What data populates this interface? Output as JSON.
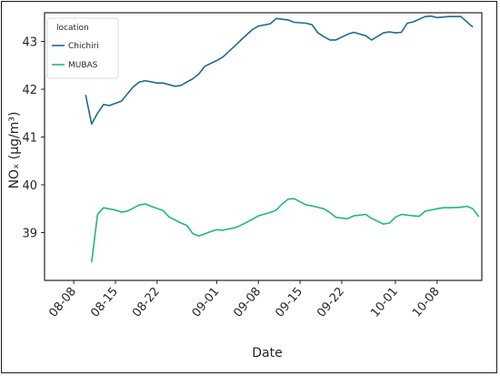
{
  "chart_data": {
    "type": "line",
    "xlabel": "Date",
    "ylabel": "NOₓ (µg/m³)",
    "x_tick_labels": [
      "08-08",
      "08-15",
      "08-22",
      "09-01",
      "09-08",
      "09-15",
      "09-22",
      "10-01",
      "10-08"
    ],
    "x_tick_dates": [
      "2000-08-08",
      "2000-08-15",
      "2000-08-22",
      "2000-09-01",
      "2000-09-08",
      "2000-09-15",
      "2000-09-22",
      "2000-10-01",
      "2000-10-08"
    ],
    "yticks": [
      "39",
      "40",
      "41",
      "42",
      "43"
    ],
    "ylim": [
      38.0,
      43.6
    ],
    "xlim": [
      "2000-08-06",
      "2000-10-12"
    ],
    "legend": {
      "title": "location",
      "placement": "top-left"
    },
    "grid": false,
    "series": [
      {
        "name": "Chichiri",
        "color": "#1f6b8f",
        "points": [
          [
            "2000-08-10",
            41.88
          ],
          [
            "2000-08-11",
            41.27
          ],
          [
            "2000-08-12",
            41.5
          ],
          [
            "2000-08-13",
            41.68
          ],
          [
            "2000-08-14",
            41.66
          ],
          [
            "2000-08-16",
            41.75
          ],
          [
            "2000-08-18",
            42.05
          ],
          [
            "2000-08-19",
            42.15
          ],
          [
            "2000-08-20",
            42.18
          ],
          [
            "2000-08-22",
            42.13
          ],
          [
            "2000-08-23",
            42.13
          ],
          [
            "2000-08-25",
            42.06
          ],
          [
            "2000-08-26",
            42.08
          ],
          [
            "2000-08-28",
            42.22
          ],
          [
            "2000-08-29",
            42.32
          ],
          [
            "2000-08-30",
            42.48
          ],
          [
            "2000-09-01",
            42.6
          ],
          [
            "2000-09-02",
            42.67
          ],
          [
            "2000-09-04",
            42.9
          ],
          [
            "2000-09-05",
            43.02
          ],
          [
            "2000-09-07",
            43.25
          ],
          [
            "2000-09-08",
            43.32
          ],
          [
            "2000-09-10",
            43.37
          ],
          [
            "2000-09-11",
            43.48
          ],
          [
            "2000-09-13",
            43.45
          ],
          [
            "2000-09-14",
            43.4
          ],
          [
            "2000-09-16",
            43.38
          ],
          [
            "2000-09-17",
            43.35
          ],
          [
            "2000-09-18",
            43.18
          ],
          [
            "2000-09-19",
            43.1
          ],
          [
            "2000-09-20",
            43.03
          ],
          [
            "2000-09-21",
            43.03
          ],
          [
            "2000-09-23",
            43.15
          ],
          [
            "2000-09-24",
            43.19
          ],
          [
            "2000-09-26",
            43.12
          ],
          [
            "2000-09-27",
            43.03
          ],
          [
            "2000-09-29",
            43.18
          ],
          [
            "2000-09-30",
            43.2
          ],
          [
            "2000-10-01",
            43.18
          ],
          [
            "2000-10-02",
            43.19
          ],
          [
            "2000-10-03",
            43.38
          ],
          [
            "2000-10-04",
            43.41
          ],
          [
            "2000-10-06",
            43.52
          ],
          [
            "2000-10-07",
            43.53
          ],
          [
            "2000-10-08",
            43.5
          ],
          [
            "2000-10-10",
            43.52
          ],
          [
            "2000-10-12",
            43.52
          ],
          [
            "2000-10-14",
            43.3
          ]
        ]
      },
      {
        "name": "MUBAS",
        "color": "#1dba7d",
        "points": [
          [
            "2000-08-11",
            38.38
          ],
          [
            "2000-08-12",
            39.38
          ],
          [
            "2000-08-13",
            39.52
          ],
          [
            "2000-08-15",
            39.47
          ],
          [
            "2000-08-16",
            39.43
          ],
          [
            "2000-08-17",
            39.45
          ],
          [
            "2000-08-19",
            39.58
          ],
          [
            "2000-08-20",
            39.6
          ],
          [
            "2000-08-21",
            39.55
          ],
          [
            "2000-08-23",
            39.46
          ],
          [
            "2000-08-24",
            39.33
          ],
          [
            "2000-08-26",
            39.2
          ],
          [
            "2000-08-27",
            39.15
          ],
          [
            "2000-08-28",
            38.98
          ],
          [
            "2000-08-29",
            38.93
          ],
          [
            "2000-08-31",
            39.02
          ],
          [
            "2000-09-01",
            39.06
          ],
          [
            "2000-09-02",
            39.05
          ],
          [
            "2000-09-04",
            39.1
          ],
          [
            "2000-09-05",
            39.15
          ],
          [
            "2000-09-07",
            39.28
          ],
          [
            "2000-09-08",
            39.35
          ],
          [
            "2000-09-10",
            39.42
          ],
          [
            "2000-09-11",
            39.47
          ],
          [
            "2000-09-12",
            39.6
          ],
          [
            "2000-09-13",
            39.7
          ],
          [
            "2000-09-14",
            39.71
          ],
          [
            "2000-09-16",
            39.58
          ],
          [
            "2000-09-17",
            39.56
          ],
          [
            "2000-09-19",
            39.5
          ],
          [
            "2000-09-20",
            39.42
          ],
          [
            "2000-09-21",
            39.32
          ],
          [
            "2000-09-23",
            39.29
          ],
          [
            "2000-09-24",
            39.35
          ],
          [
            "2000-09-26",
            39.38
          ],
          [
            "2000-09-27",
            39.3
          ],
          [
            "2000-09-29",
            39.18
          ],
          [
            "2000-09-30",
            39.2
          ],
          [
            "2000-10-01",
            39.32
          ],
          [
            "2000-10-02",
            39.38
          ],
          [
            "2000-10-04",
            39.35
          ],
          [
            "2000-10-05",
            39.34
          ],
          [
            "2000-10-06",
            39.45
          ],
          [
            "2000-10-08",
            39.5
          ],
          [
            "2000-10-09",
            39.52
          ],
          [
            "2000-10-10",
            39.52
          ],
          [
            "2000-10-12",
            39.53
          ],
          [
            "2000-10-13",
            39.55
          ],
          [
            "2000-10-14",
            39.5
          ],
          [
            "2000-10-15",
            39.33
          ]
        ]
      }
    ]
  }
}
